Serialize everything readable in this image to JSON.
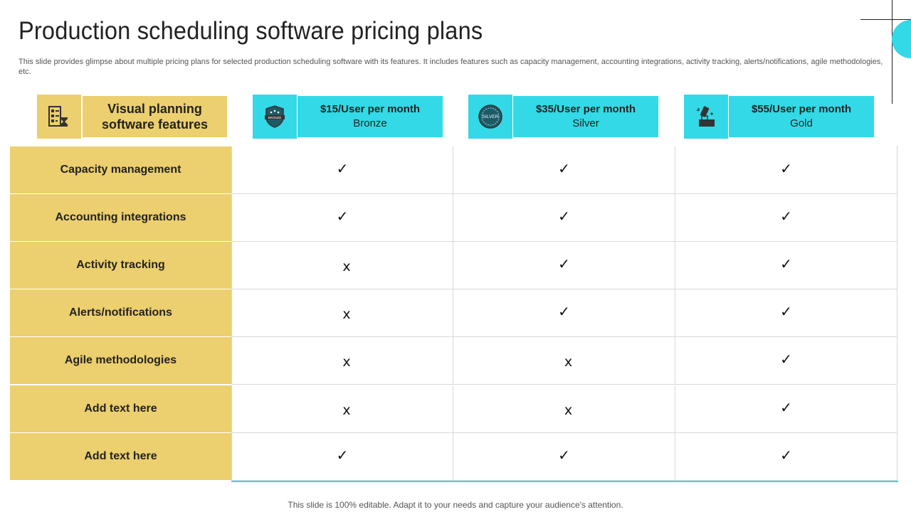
{
  "slide": {
    "title": "Production scheduling software pricing plans",
    "subtitle": "This slide provides glimpse about multiple pricing plans for selected production scheduling software with its features. It includes features such as capacity management, accounting integrations, activity tracking, alerts/notifications, agile methodologies, etc.",
    "footer": "This slide is 100% editable. Adapt it to your needs and capture your audience's attention."
  },
  "header": {
    "features_label_line1": "Visual planning",
    "features_label_line2": "software features",
    "features_icon": "planning-checklist-icon",
    "plans": [
      {
        "price": "$15/User per month",
        "tier": "Bronze",
        "icon": "bronze-badge-icon"
      },
      {
        "price": "$35/User per month",
        "tier": "Silver",
        "icon": "silver-seal-icon"
      },
      {
        "price": "$55/User per month",
        "tier": "Gold",
        "icon": "gold-bar-icon"
      }
    ]
  },
  "marks": {
    "yes": "✓",
    "no": "x"
  },
  "rows": [
    {
      "feature": "Capacity management",
      "values": [
        "yes",
        "yes",
        "yes"
      ]
    },
    {
      "feature": "Accounting integrations",
      "values": [
        "yes",
        "yes",
        "yes"
      ]
    },
    {
      "feature": "Activity tracking",
      "values": [
        "no",
        "yes",
        "yes"
      ]
    },
    {
      "feature": "Alerts/notifications",
      "values": [
        "no",
        "yes",
        "yes"
      ]
    },
    {
      "feature": "Agile methodologies",
      "values": [
        "no",
        "no",
        "yes"
      ]
    },
    {
      "feature": "Add text here",
      "values": [
        "no",
        "no",
        "yes"
      ]
    },
    {
      "feature": "Add text here",
      "values": [
        "yes",
        "yes",
        "yes"
      ]
    }
  ],
  "colors": {
    "feature_yellow": "#eccf6e",
    "plan_cyan": "#33d9e6"
  }
}
